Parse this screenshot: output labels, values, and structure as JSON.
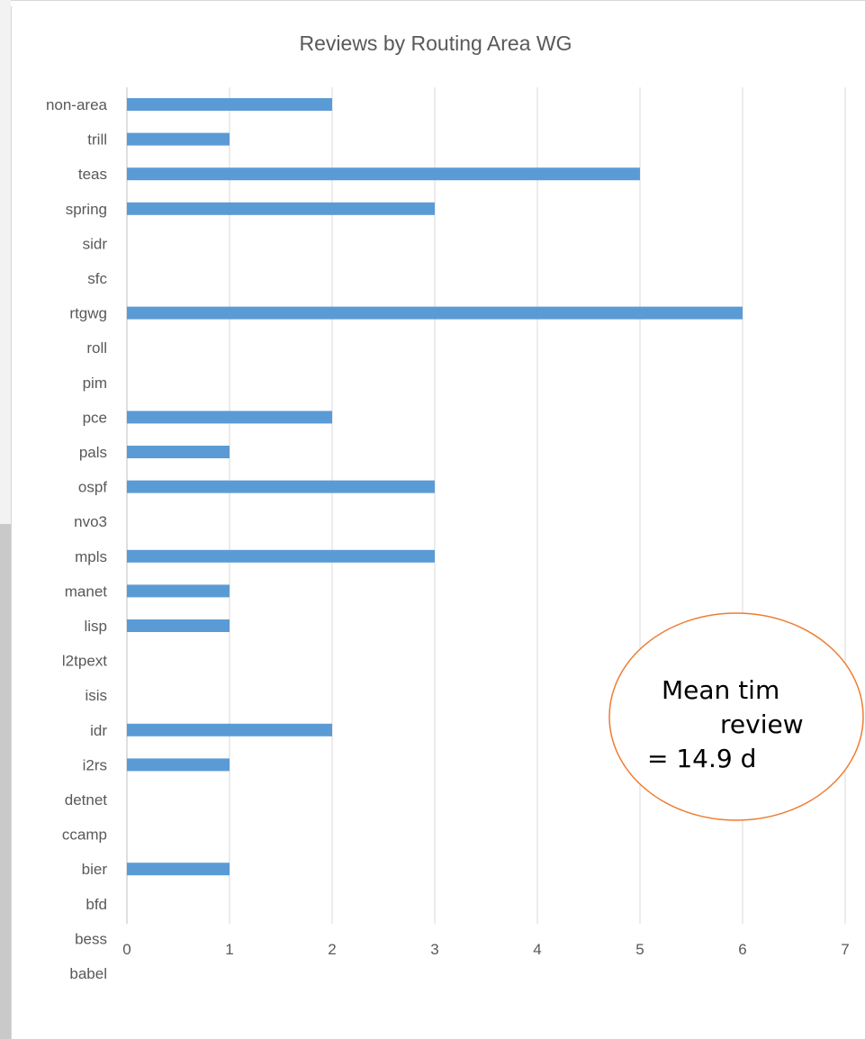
{
  "chart_data": {
    "type": "bar",
    "orientation": "horizontal",
    "title": "Reviews by Routing Area WG",
    "categories": [
      "non-area",
      "trill",
      "teas",
      "spring",
      "sidr",
      "sfc",
      "rtgwg",
      "roll",
      "pim",
      "pce",
      "pals",
      "ospf",
      "nvo3",
      "mpls",
      "manet",
      "lisp",
      "l2tpext",
      "isis",
      "idr",
      "i2rs",
      "detnet",
      "ccamp",
      "bier",
      "bfd",
      "bess",
      "babel"
    ],
    "values": [
      2,
      1,
      5,
      3,
      0,
      0,
      6,
      0,
      0,
      2,
      1,
      3,
      0,
      3,
      1,
      1,
      0,
      0,
      2,
      1,
      0,
      0,
      1,
      0,
      0,
      0
    ],
    "xlim": [
      0,
      7
    ],
    "x_ticks": [
      "0",
      "1",
      "2",
      "3",
      "4",
      "5",
      "6",
      "7"
    ],
    "grid": true,
    "bar_color": "#5b9bd5"
  },
  "callout": {
    "line1": "Mean tim",
    "line2": "review",
    "line3": "= 14.9 d",
    "border_color": "#ed7d31"
  }
}
